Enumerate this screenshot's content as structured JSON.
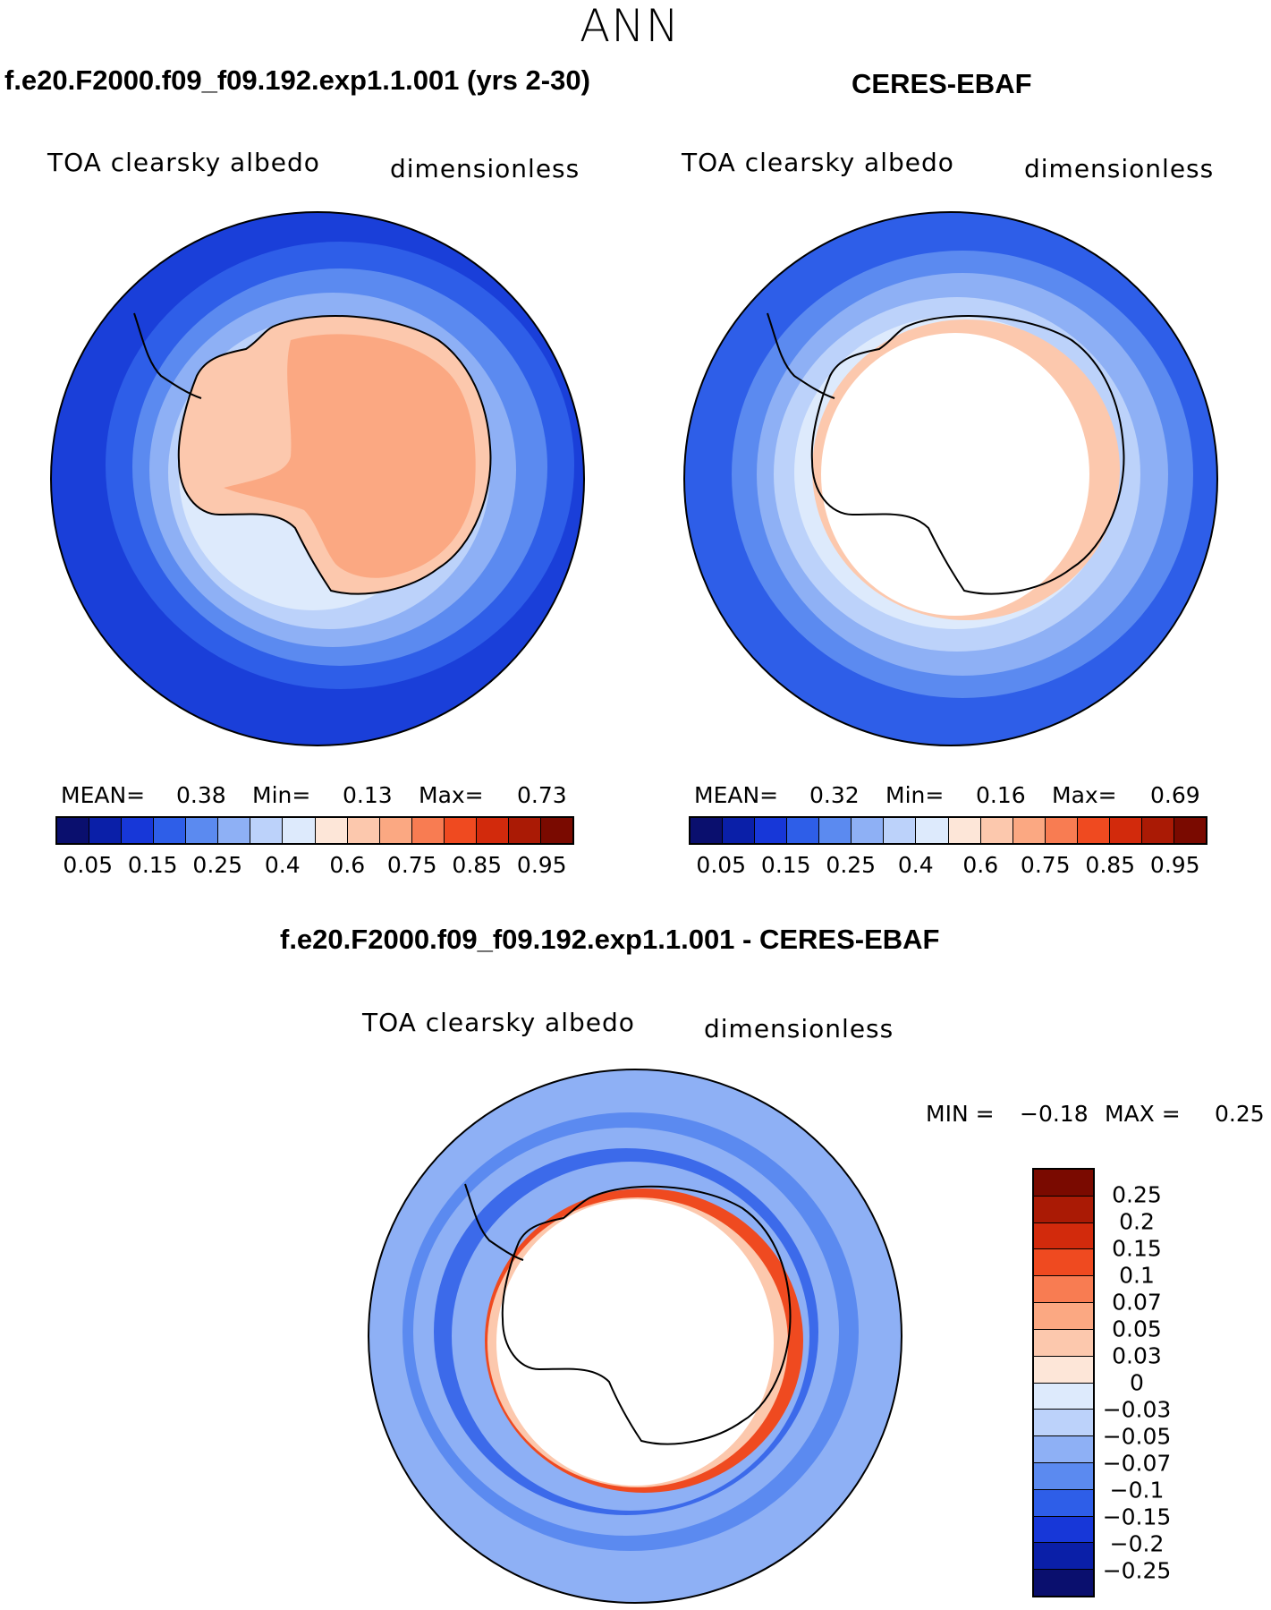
{
  "figure": {
    "season": "ANN",
    "left_title": "f.e20.F2000.f09_f09.192.exp1.1.001 (yrs 2-30)",
    "right_title": "CERES-EBAF",
    "diff_title": "f.e20.F2000.f09_f09.192.exp1.1.001 - CERES-EBAF"
  },
  "panels": {
    "model": {
      "variable": "TOA clearsky albedo",
      "units": "dimensionless",
      "mean_label": "MEAN=",
      "mean": "0.38",
      "min_label": "Min=",
      "min": "0.13",
      "max_label": "Max=",
      "max": "0.73"
    },
    "obs": {
      "variable": "TOA clearsky albedo",
      "units": "dimensionless",
      "mean_label": "MEAN=",
      "mean": "0.32",
      "min_label": "Min=",
      "min": "0.16",
      "max_label": "Max=",
      "max": "0.69"
    },
    "diff": {
      "variable": "TOA clearsky albedo",
      "units": "dimensionless",
      "min_label": "MIN =",
      "min": "−0.18",
      "max_label": "MAX =",
      "max": "0.25"
    }
  },
  "colorbar_main": {
    "colors": [
      "#0a0f6e",
      "#0a1fa8",
      "#1737d8",
      "#2e5ee8",
      "#5b8af0",
      "#8eb0f5",
      "#bcd2fa",
      "#ddeafc",
      "#fde6d8",
      "#fcc8ad",
      "#fba882",
      "#f87c52",
      "#ef4a20",
      "#d22a0c",
      "#aa1a05",
      "#7a0a00"
    ],
    "ticks": [
      "0.05",
      "0.15",
      "0.25",
      "0.4",
      "0.6",
      "0.75",
      "0.85",
      "0.95"
    ]
  },
  "colorbar_diff": {
    "colors": [
      "#7a0a00",
      "#aa1a05",
      "#d22a0c",
      "#ef4a20",
      "#f87c52",
      "#fba882",
      "#fcc8ad",
      "#fde6d8",
      "#ddeafc",
      "#bcd2fa",
      "#8eb0f5",
      "#5b8af0",
      "#2e5ee8",
      "#1737d8",
      "#0a1fa8",
      "#0a0f6e"
    ],
    "ticks": [
      "0.25",
      "0.2",
      "0.15",
      "0.1",
      "0.07",
      "0.05",
      "0.03",
      "0",
      "−0.03",
      "−0.05",
      "−0.07",
      "−0.1",
      "−0.15",
      "−0.2",
      "−0.25"
    ]
  },
  "map_colors": {
    "ocean_deep": "#1a3fd9",
    "ocean_mid": "#2e5ee8",
    "ocean_light": "#5b8af0",
    "ice_edge": "#8eb0f5",
    "sea_ice": "#bcd2fa",
    "pale": "#ddeafc",
    "land_model": "#fba882",
    "land_model_edge": "#fcc8ad",
    "diff_pos": "#ef4a20",
    "diff_pos_light": "#fba882"
  }
}
